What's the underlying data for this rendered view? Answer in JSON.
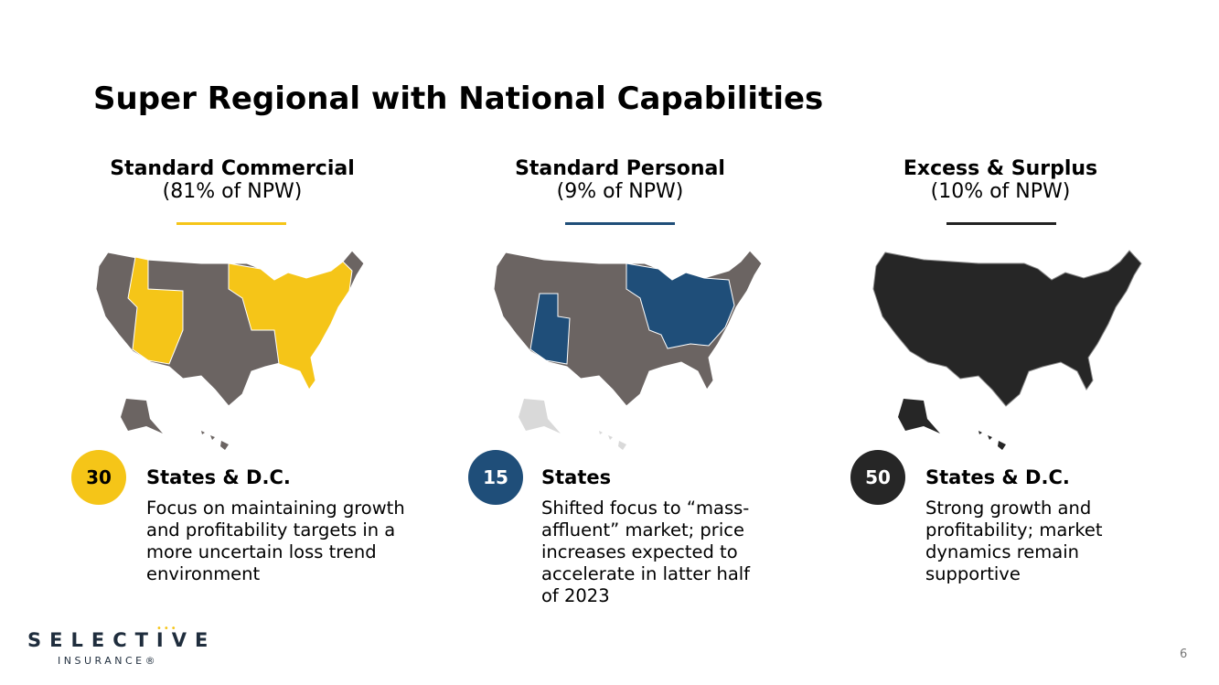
{
  "title": "Super Regional with National Capabilities",
  "segments": [
    {
      "heading": "Standard Commercial",
      "share": "(81% of NPW)",
      "count": 30,
      "count_label": "States & D.C.",
      "description": "Focus on maintaining growth and profitability targets in a more uncertain loss trend environment"
    },
    {
      "heading": "Standard Personal",
      "share": "(9% of NPW)",
      "count": 15,
      "count_label": "States",
      "description": "Shifted focus to “mass-affluent” market; price increases expected to accelerate in latter half of 2023"
    },
    {
      "heading": "Excess & Surplus",
      "share": "(10% of NPW)",
      "count": 50,
      "count_label": "States & D.C.",
      "description": "Strong growth and profitability; market dynamics remain supportive"
    }
  ],
  "logo": {
    "name": "SELECTIVE",
    "sub": "INSURANCE®"
  },
  "page_number": 6
}
